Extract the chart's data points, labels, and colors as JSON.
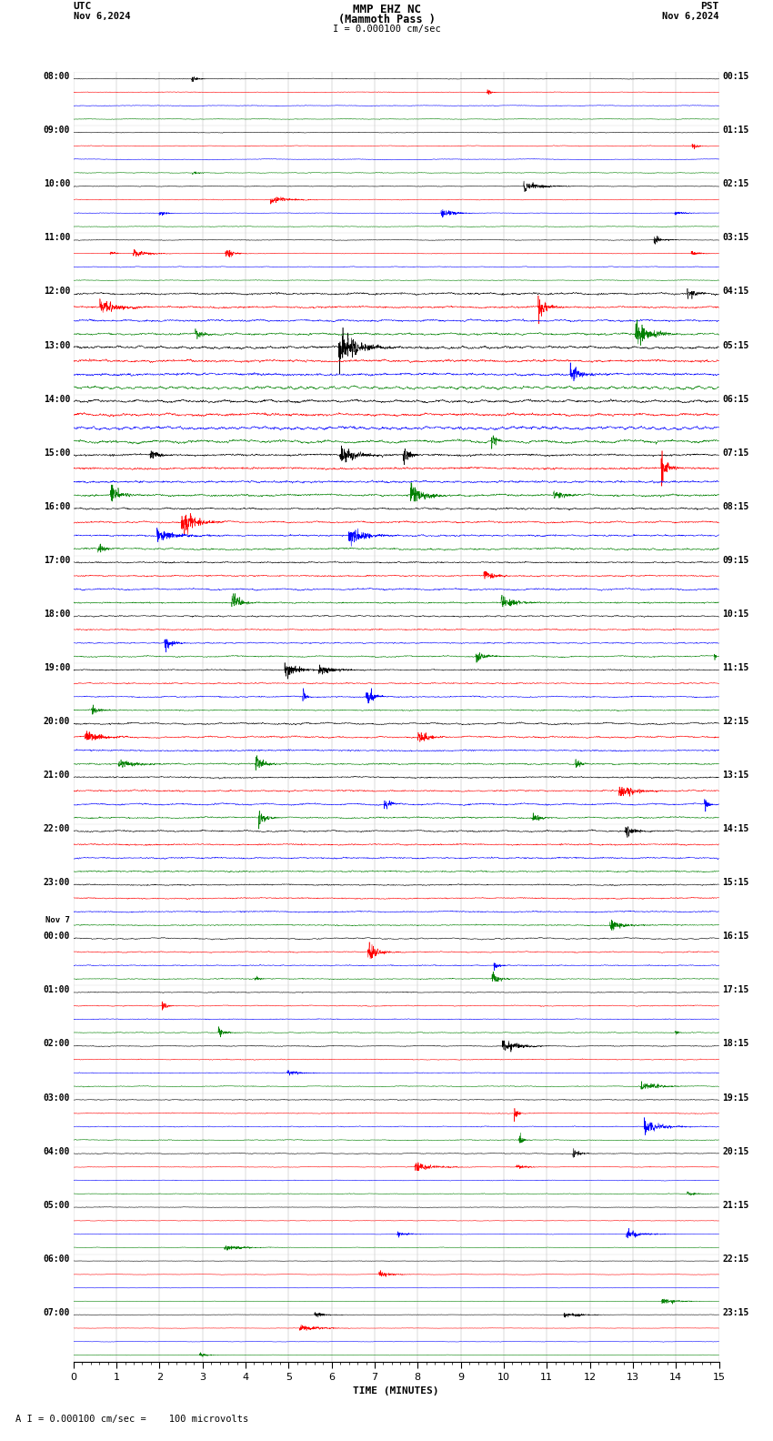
{
  "title_line1": "MMP EHZ NC",
  "title_line2": "(Mammoth Pass )",
  "scale_text": "I = 0.000100 cm/sec",
  "footer_text": "A I = 0.000100 cm/sec =    100 microvolts",
  "utc_label": "UTC",
  "utc_date": "Nov 6,2024",
  "pst_label": "PST",
  "pst_date": "Nov 6,2024",
  "xlabel": "TIME (MINUTES)",
  "xlim": [
    0,
    15
  ],
  "xticks": [
    0,
    1,
    2,
    3,
    4,
    5,
    6,
    7,
    8,
    9,
    10,
    11,
    12,
    13,
    14,
    15
  ],
  "background_color": "#ffffff",
  "trace_colors": [
    "black",
    "red",
    "blue",
    "green"
  ],
  "left_hour_labels": [
    "08:00",
    "09:00",
    "10:00",
    "11:00",
    "12:00",
    "13:00",
    "14:00",
    "15:00",
    "16:00",
    "17:00",
    "18:00",
    "19:00",
    "20:00",
    "21:00",
    "22:00",
    "23:00",
    "00:00",
    "01:00",
    "02:00",
    "03:00",
    "04:00",
    "05:00",
    "06:00",
    "07:00"
  ],
  "left_extra_labels": {
    "16": "Nov 7"
  },
  "right_hour_labels": [
    "00:15",
    "01:15",
    "02:15",
    "03:15",
    "04:15",
    "05:15",
    "06:15",
    "07:15",
    "08:15",
    "09:15",
    "10:15",
    "11:15",
    "12:15",
    "13:15",
    "14:15",
    "15:15",
    "16:15",
    "17:15",
    "18:15",
    "19:15",
    "20:15",
    "21:15",
    "22:15",
    "23:15"
  ],
  "num_rows": 24,
  "traces_per_row": 4,
  "noise_seed": 42,
  "figwidth": 8.5,
  "figheight": 15.84,
  "dpi": 100,
  "amplitudes": [
    0.08,
    0.08,
    0.08,
    0.08,
    0.22,
    0.28,
    0.3,
    0.25,
    0.2,
    0.18,
    0.15,
    0.15,
    0.18,
    0.18,
    0.18,
    0.15,
    0.12,
    0.1,
    0.1,
    0.1,
    0.08,
    0.06,
    0.05,
    0.05
  ]
}
